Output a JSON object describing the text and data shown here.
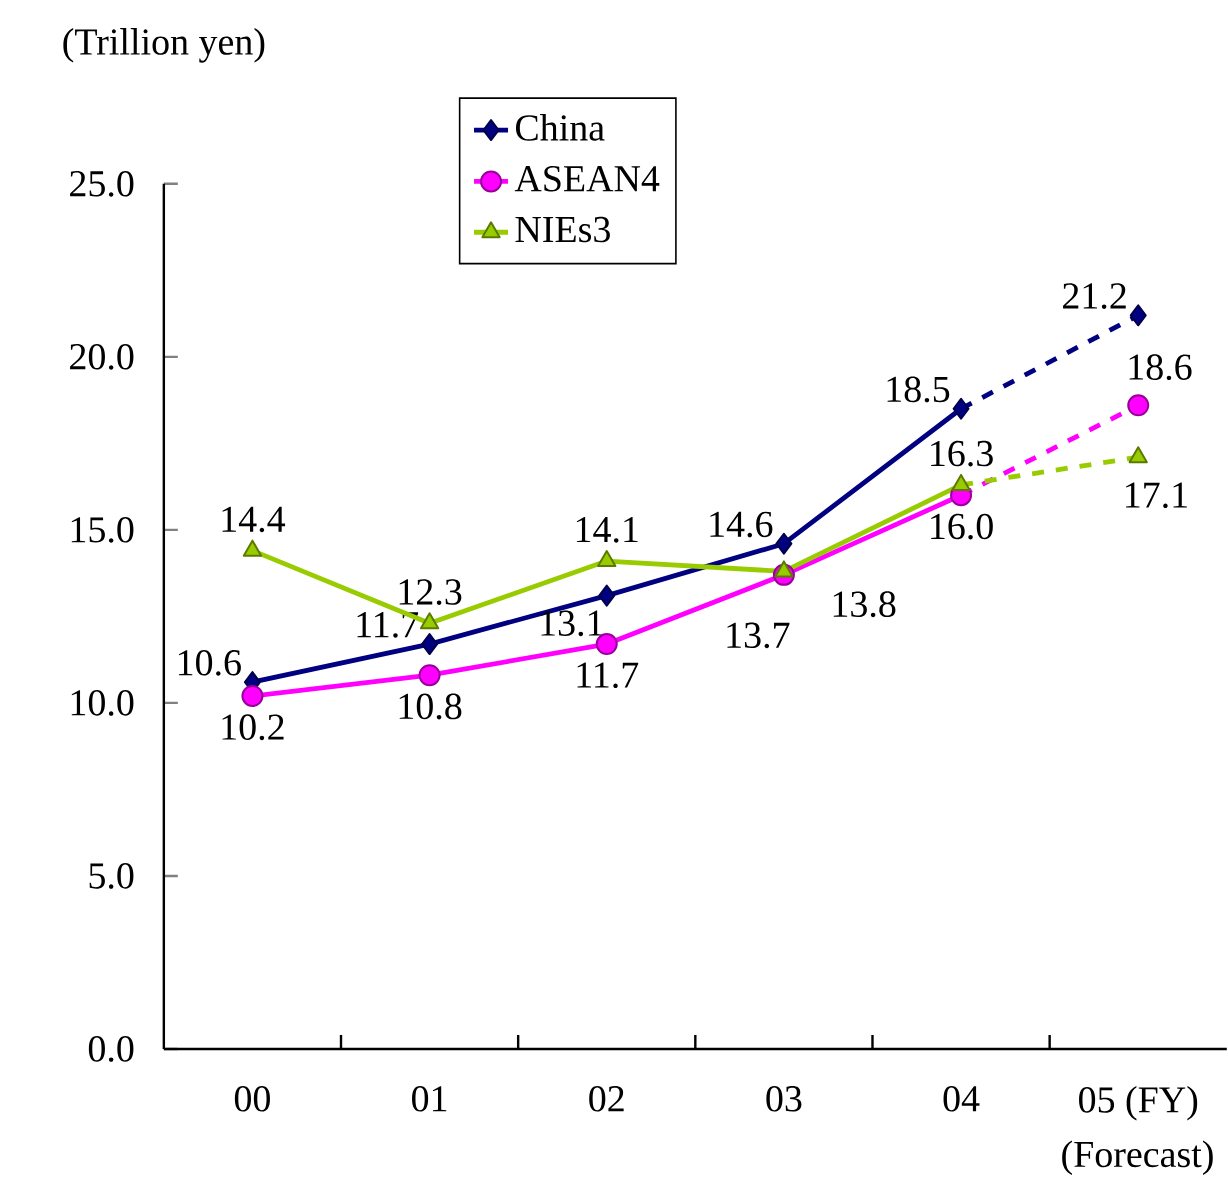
{
  "chart_data": {
    "type": "line",
    "ylabel": "(Trillion yen)",
    "categories": [
      "00",
      "01",
      "02",
      "03",
      "04",
      "05 (FY)"
    ],
    "ylim": [
      0,
      25
    ],
    "yticks": [
      {
        "value": 0,
        "label": "0.0"
      },
      {
        "value": 5,
        "label": "5.0"
      },
      {
        "value": 10,
        "label": "10.0"
      },
      {
        "value": 15,
        "label": "15.0"
      },
      {
        "value": 20,
        "label": "20.0"
      },
      {
        "value": 25,
        "label": "25.0"
      }
    ],
    "grid": false,
    "legend": "top",
    "annotations": [
      "(Forecast)"
    ],
    "series": [
      {
        "name": "China",
        "color": "#000080",
        "marker": "diamond",
        "line_style": "solid",
        "values": [
          10.6,
          11.7,
          13.1,
          14.6,
          18.5,
          null
        ],
        "value_labels": [
          "10.6",
          "11.7",
          "13.1",
          "14.6",
          "18.5",
          null
        ]
      },
      {
        "name": "ASEAN4",
        "color": "#ff00ff",
        "marker": "circle",
        "line_style": "solid",
        "values": [
          10.2,
          10.8,
          11.7,
          13.7,
          16.0,
          null
        ],
        "value_labels": [
          "10.2",
          "10.8",
          "11.7",
          "13.7",
          "16.0",
          null
        ]
      },
      {
        "name": "NIEs3",
        "color": "#99cc00",
        "marker": "triangle",
        "line_style": "solid",
        "values": [
          14.4,
          12.3,
          14.1,
          13.8,
          16.3,
          null
        ],
        "value_labels": [
          "14.4",
          "12.3",
          "14.1",
          "13.8",
          "16.3",
          null
        ]
      },
      {
        "color": "#000080",
        "marker": "diamond",
        "line_style": "dashed",
        "values": [
          null,
          null,
          null,
          null,
          null,
          21.2
        ],
        "value_labels": [
          null,
          null,
          null,
          null,
          null,
          "21.2"
        ]
      },
      {
        "color": "#ff00ff",
        "marker": "circle",
        "line_style": "dashed",
        "values": [
          null,
          null,
          null,
          null,
          null,
          18.6
        ],
        "value_labels": [
          null,
          null,
          null,
          null,
          null,
          "18.6"
        ]
      },
      {
        "color": "#99cc00",
        "marker": "triangle",
        "line_style": "dashed",
        "values": [
          null,
          null,
          null,
          null,
          null,
          17.1
        ],
        "value_labels": [
          null,
          null,
          null,
          null,
          null,
          "17.1"
        ]
      }
    ]
  }
}
